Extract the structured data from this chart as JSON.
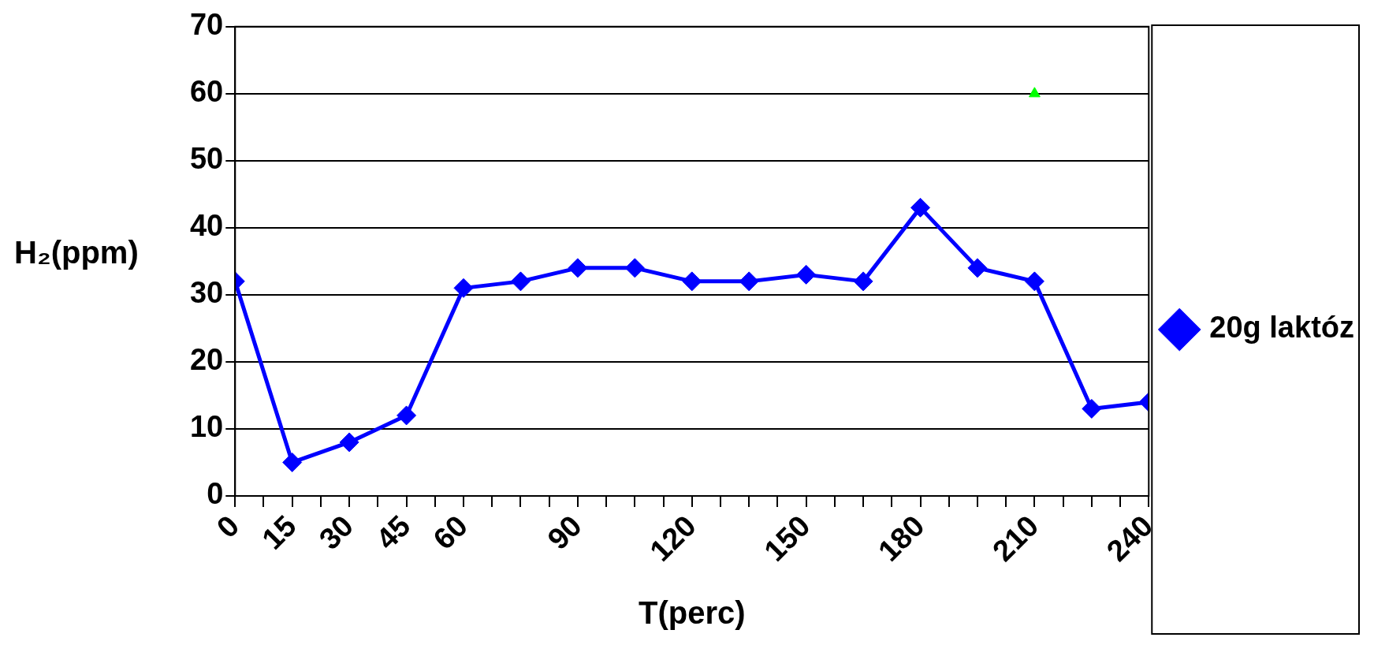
{
  "chart_data": {
    "type": "line",
    "xlabel": "T(perc)",
    "ylabel": "H₂(ppm)",
    "x": [
      0,
      15,
      30,
      45,
      60,
      75,
      90,
      105,
      120,
      135,
      150,
      165,
      180,
      195,
      210,
      225,
      240
    ],
    "series": [
      {
        "name": "20g laktóz",
        "color": "#0000ff",
        "marker": "diamond",
        "values": [
          32,
          5,
          8,
          12,
          31,
          32,
          34,
          34,
          32,
          32,
          33,
          32,
          43,
          34,
          32,
          13,
          14
        ]
      },
      {
        "type": "scatter",
        "color": "#00ff00",
        "marker": "triangle",
        "x": [
          210
        ],
        "values": [
          60
        ]
      }
    ],
    "xlim": [
      0,
      240
    ],
    "xticks": [
      0,
      {
        "value": 7.5,
        "label": null
      },
      15,
      {
        "value": 22.5,
        "label": null
      },
      30,
      {
        "value": 37.5,
        "label": null
      },
      45,
      {
        "value": 52.5,
        "label": null
      },
      60,
      {
        "value": 67.5,
        "label": null
      },
      {
        "value": 75,
        "label": null
      },
      {
        "value": 82.5,
        "label": null
      },
      90,
      {
        "value": 97.5,
        "label": null
      },
      {
        "value": 105,
        "label": null
      },
      {
        "value": 112.5,
        "label": null
      },
      120,
      {
        "value": 127.5,
        "label": null
      },
      {
        "value": 135,
        "label": null
      },
      {
        "value": 142.5,
        "label": null
      },
      150,
      {
        "value": 157.5,
        "label": null
      },
      {
        "value": 165,
        "label": null
      },
      {
        "value": 172.5,
        "label": null
      },
      180,
      {
        "value": 187.5,
        "label": null
      },
      {
        "value": 195,
        "label": null
      },
      {
        "value": 202.5,
        "label": null
      },
      210,
      {
        "value": 217.5,
        "label": null
      },
      {
        "value": 225,
        "label": null
      },
      {
        "value": 232.5,
        "label": null
      },
      240
    ],
    "ylim": [
      0,
      70
    ],
    "yticks": [
      0,
      10,
      20,
      30,
      40,
      50,
      60,
      70
    ],
    "grid": "y",
    "legend": "right"
  }
}
